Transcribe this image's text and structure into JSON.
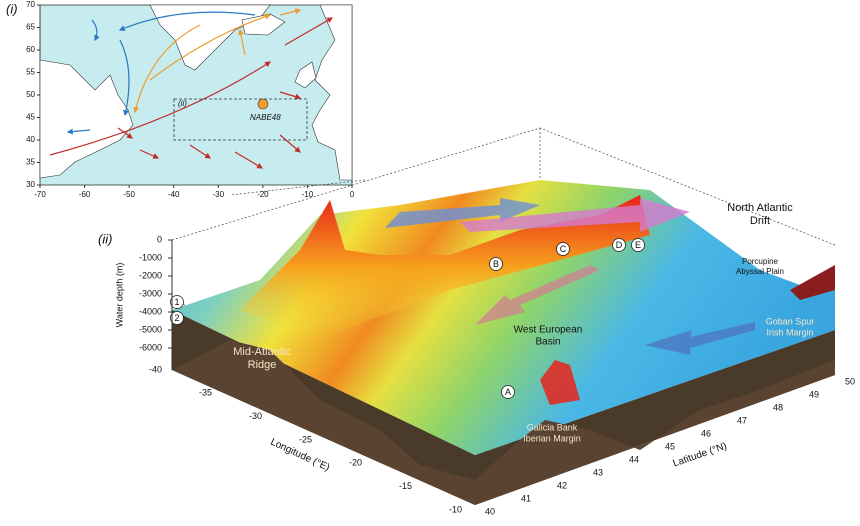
{
  "map": {
    "panel": "(i)",
    "box_label": "(ii)",
    "site": "NABE48",
    "xticks": [
      -70,
      -60,
      -50,
      -40,
      -30,
      -20,
      -10,
      0
    ],
    "yticks": [
      30,
      35,
      40,
      45,
      50,
      55,
      60,
      65,
      70
    ]
  },
  "bathymetry": {
    "panel": "(ii)",
    "depth_label": "Water depth (m)",
    "depth_ticks": [
      0,
      -1000,
      -2000,
      -3000,
      -4000,
      -5000,
      -6000
    ],
    "longitude_label": "Longitude (°E)",
    "longitude_ticks": [
      -40,
      -35,
      -30,
      -25,
      -20,
      -15,
      -10
    ],
    "latitude_label": "Latitude (°N)",
    "latitude_ticks": [
      40,
      41,
      42,
      43,
      44,
      45,
      46,
      47,
      48,
      49,
      50
    ],
    "annotations": [
      {
        "text": "North Atlantic",
        "line2": "Drift"
      },
      {
        "text": "Porcupine",
        "line2": "Abyssal Plain"
      },
      {
        "text": "Goban Spur",
        "line2": "Irish Margin"
      },
      {
        "text": "West European",
        "line2": "Basin"
      },
      {
        "text": "Mid-Atlantic",
        "line2": "Ridge"
      },
      {
        "text": "Galicia Bank",
        "line2": "Iberian Margin"
      }
    ],
    "sites": [
      "A",
      "B",
      "C",
      "D",
      "E",
      "1",
      "2"
    ]
  }
}
